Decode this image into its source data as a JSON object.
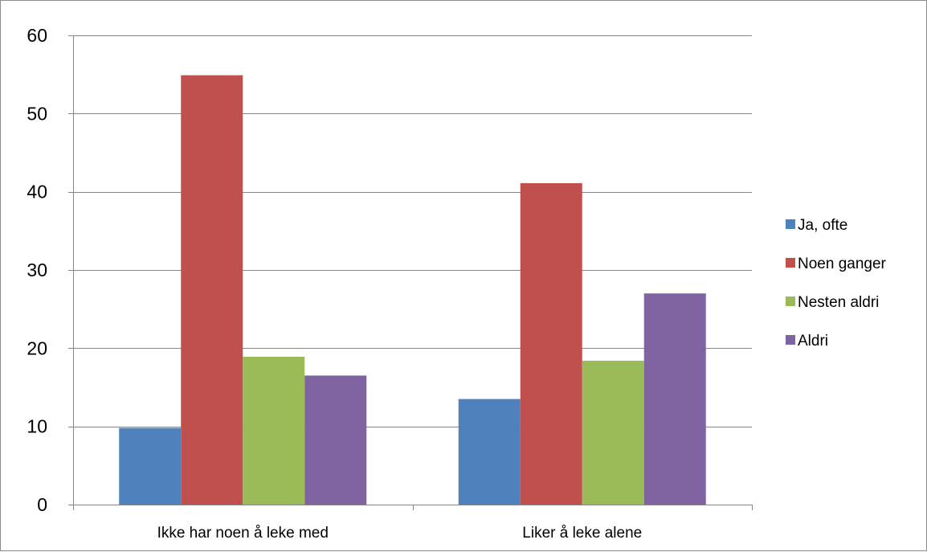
{
  "chart_data": {
    "type": "bar",
    "title": "",
    "xlabel": "",
    "ylabel": "",
    "categories": [
      "Ikke har noen å leke med",
      "Liker å leke alene"
    ],
    "series": [
      {
        "name": "Ja, ofte",
        "values": [
          9.8,
          13.5
        ],
        "color": "#4f81bd"
      },
      {
        "name": "Noen ganger",
        "values": [
          54.9,
          41.1
        ],
        "color": "#c0504d"
      },
      {
        "name": "Nesten aldri",
        "values": [
          18.9,
          18.4
        ],
        "color": "#9bbb59"
      },
      {
        "name": "Aldri",
        "values": [
          16.5,
          27.0
        ],
        "color": "#8064a2"
      }
    ],
    "ylim": [
      0,
      60
    ],
    "yticks": [
      0,
      10,
      20,
      30,
      40,
      50,
      60
    ],
    "grid": true,
    "legend": "right",
    "gridline_color": "#868686",
    "axis_color": "#868686"
  }
}
